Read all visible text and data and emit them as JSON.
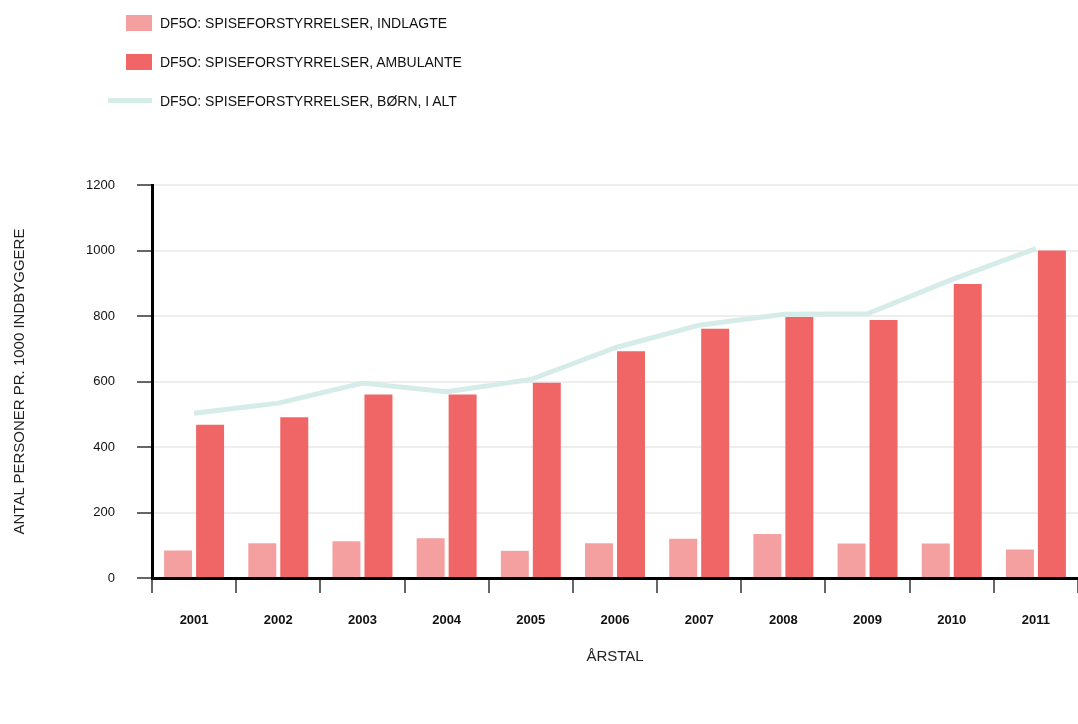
{
  "chart_data": {
    "type": "bar",
    "xlabel": "ÅRSTAL",
    "ylabel": "ANTAL PERSONER PR. 1000 INDBYGGERE",
    "categories": [
      "2001",
      "2002",
      "2003",
      "2004",
      "2005",
      "2006",
      "2007",
      "2008",
      "2009",
      "2010",
      "2011"
    ],
    "series": [
      {
        "name": "DF5O: SPISEFORSTYRRELSER, INDLAGTE",
        "color": "#f4a0a0",
        "values": [
          84,
          106,
          112,
          121,
          83,
          106,
          120,
          134,
          105,
          105,
          87
        ]
      },
      {
        "name": "DF5O: SPISEFORSTYRRELSER, AMBULANTE",
        "color": "#f06666",
        "values": [
          468,
          491,
          560,
          560,
          596,
          692,
          761,
          797,
          788,
          898,
          1000
        ]
      },
      {
        "name": "DF5O: SPISEFORSTYRRELSER, BØRN, I ALT",
        "type": "line",
        "color": "#d5ece8",
        "values": [
          503,
          534,
          595,
          569,
          606,
          703,
          772,
          805,
          807,
          911,
          1006
        ]
      }
    ],
    "ylim": [
      0,
      1200
    ],
    "yticks": [
      0,
      200,
      400,
      600,
      800,
      1000,
      1200
    ],
    "grid": "y",
    "legend": "top left",
    "marker": "none"
  }
}
